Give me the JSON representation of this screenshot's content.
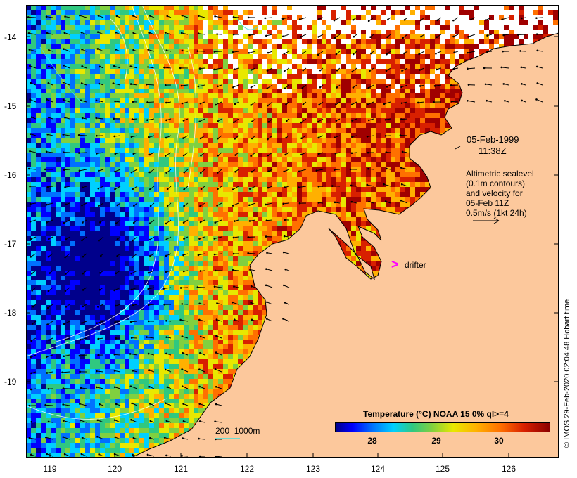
{
  "map": {
    "lat_ticks": [
      "-14",
      "-15",
      "-16",
      "-17",
      "-18",
      "-19"
    ],
    "lon_ticks": [
      "119",
      "120",
      "121",
      "122",
      "123",
      "124",
      "125",
      "126"
    ],
    "land_color": "#fcc89c",
    "palette": [
      "#00008b",
      "#0000ff",
      "#0070ff",
      "#00d0ff",
      "#30c880",
      "#80d040",
      "#e8e800",
      "#ffb000",
      "#ff7000",
      "#d82000",
      "#a00000"
    ]
  },
  "annotations": {
    "date": "05-Feb-1999",
    "time": "11:38Z",
    "altimetry_lines": [
      "Altimetric sealevel",
      "(0.1m contours)",
      "and velocity for",
      "05-Feb 11Z",
      "0.5m/s (1kt 24h)"
    ],
    "drifter_label": "drifter",
    "depth_scale_label": "200  1000m"
  },
  "colorbar": {
    "title": "Temperature (°C) NOAA 15 0% ql>=4",
    "ticks": [
      "28",
      "29",
      "30"
    ]
  },
  "credit": "© IMOS 29-Feb-2020 02:04:48 Hobart time"
}
